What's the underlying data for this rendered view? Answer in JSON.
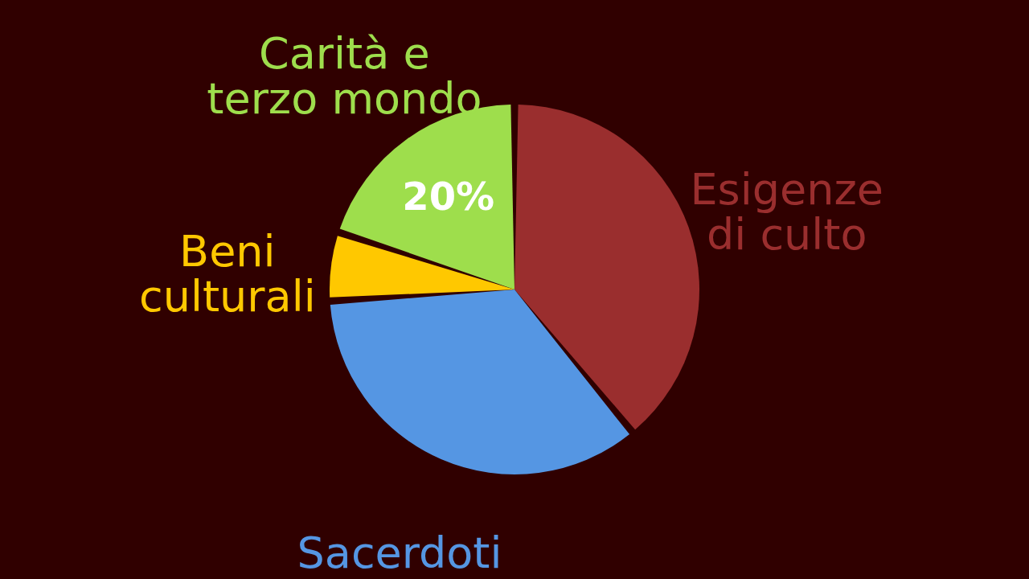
{
  "chart_data": {
    "type": "pie",
    "categories": [
      "Esigenze di culto",
      "Sacerdoti",
      "Beni culturali",
      "Carità e terzo mondo"
    ],
    "values": [
      39,
      35,
      6,
      20
    ],
    "colors": [
      "#9a2e2e",
      "#5596e3",
      "#ffc800",
      "#9ede4c"
    ],
    "value_labels": [
      null,
      null,
      null,
      "20%"
    ],
    "legend": false
  }
}
